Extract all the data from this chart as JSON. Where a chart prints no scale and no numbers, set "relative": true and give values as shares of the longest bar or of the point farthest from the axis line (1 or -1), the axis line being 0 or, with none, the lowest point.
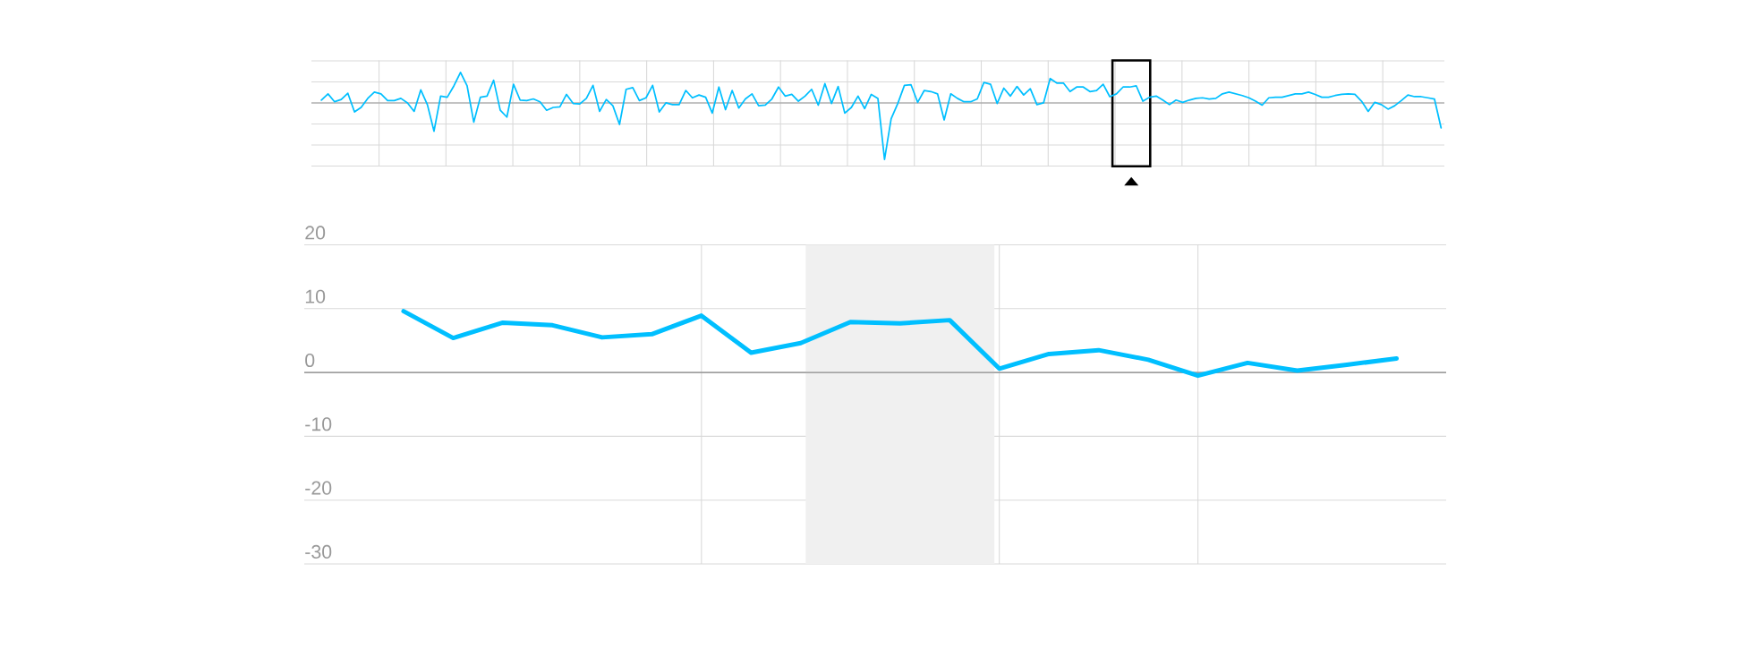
{
  "chart_data": [
    {
      "type": "line",
      "relative": true,
      "color": "#00bfff",
      "grid": true,
      "tick_labels": false,
      "categories": [
        null,
        null,
        null,
        null,
        null,
        null,
        null,
        null,
        null,
        null,
        null,
        null,
        null,
        null,
        null,
        null,
        null,
        null,
        null,
        null,
        null,
        null,
        null,
        null,
        null,
        null,
        null,
        null,
        null,
        null,
        null,
        null,
        null,
        null,
        null,
        null,
        null,
        null,
        null,
        null,
        null,
        null,
        null,
        null,
        null,
        null,
        null,
        null,
        null,
        null,
        null,
        null,
        null,
        null,
        null,
        null,
        null,
        null,
        null,
        null,
        null,
        null,
        null,
        null,
        null,
        null,
        null,
        null,
        null,
        null,
        null,
        null,
        null,
        null,
        null,
        null,
        null,
        null,
        null,
        null,
        null,
        null,
        null,
        null,
        null,
        null,
        null,
        null,
        null,
        null,
        null,
        null,
        null,
        null,
        null,
        null,
        null,
        null,
        null,
        null,
        null,
        null,
        null,
        null,
        null,
        null,
        null,
        null,
        null,
        null,
        null,
        null,
        null,
        null,
        null,
        null,
        null,
        null,
        null,
        null,
        null,
        null,
        null,
        null,
        null,
        null,
        null,
        null,
        null,
        null,
        null,
        null,
        null,
        null,
        null,
        null,
        null,
        null,
        null,
        null,
        null,
        null,
        null,
        null,
        null,
        null,
        null,
        null,
        null,
        null,
        null,
        null,
        null,
        null,
        null,
        null,
        null,
        null,
        null,
        null,
        null,
        null,
        null,
        null,
        null,
        null,
        null,
        null,
        null,
        null
      ],
      "values": [
        0.05,
        0.16,
        0.02,
        0.06,
        0.17,
        -0.16,
        -0.08,
        0.08,
        0.19,
        0.16,
        0.04,
        0.04,
        0.08,
        0,
        -0.15,
        0.23,
        -0.03,
        -0.5,
        0.12,
        0.1,
        0.3,
        0.54,
        0.3,
        -0.34,
        0.1,
        0.12,
        0.4,
        -0.13,
        -0.25,
        0.33,
        0.05,
        0.04,
        0.07,
        0.02,
        -0.13,
        -0.08,
        -0.07,
        0.15,
        -0.01,
        -0.02,
        0.08,
        0.31,
        -0.15,
        0.06,
        -0.05,
        -0.38,
        0.24,
        0.27,
        0.04,
        0.09,
        0.31,
        -0.16,
        0,
        -0.03,
        -0.03,
        0.22,
        0.09,
        0.14,
        0.1,
        -0.18,
        0.28,
        -0.12,
        0.22,
        -0.09,
        0.07,
        0.16,
        -0.05,
        -0.04,
        0.07,
        0.28,
        0.12,
        0.15,
        0.03,
        0.12,
        0.24,
        -0.04,
        0.34,
        -0.01,
        0.29,
        -0.18,
        -0.08,
        0.12,
        -0.1,
        0.15,
        0.08,
        -1,
        -0.28,
        -0.01,
        0.31,
        0.32,
        0.01,
        0.22,
        0.2,
        0.16,
        -0.3,
        0.16,
        0.08,
        0.02,
        0.02,
        0.07,
        0.36,
        0.33,
        -0.01,
        0.26,
        0.12,
        0.29,
        0.14,
        0.25,
        -0.03,
        0,
        0.43,
        0.35,
        0.35,
        0.2,
        0.28,
        0.28,
        0.2,
        0.22,
        0.33,
        0.11,
        0.16,
        0.28,
        0.28,
        0.3,
        0.03,
        0.1,
        0.12,
        0.05,
        -0.03,
        0.05,
        0.01,
        0.05,
        0.08,
        0.09,
        0.07,
        0.08,
        0.16,
        0.19,
        0.16,
        0.13,
        0.09,
        0.03,
        -0.04,
        0.09,
        0.1,
        0.1,
        0.13,
        0.16,
        0.16,
        0.19,
        0.15,
        0.1,
        0.1,
        0.13,
        0.15,
        0.16,
        0.15,
        0.03,
        -0.15,
        0.01,
        -0.03,
        -0.11,
        -0.05,
        0.04,
        0.14,
        0.11,
        0.11,
        0.09,
        0.07,
        -0.44
      ]
    },
    {
      "type": "line",
      "color": "#00bfff",
      "grid": true,
      "tick_labels": "y",
      "categories": [
        null,
        null,
        null,
        null,
        null,
        null,
        null,
        null,
        null,
        null,
        null,
        null,
        null,
        null,
        null,
        null,
        null,
        null,
        null,
        null,
        null
      ],
      "values": [
        9.6,
        5.4,
        7.8,
        7.4,
        5.5,
        6.0,
        8.9,
        3.1,
        4.6,
        7.9,
        7.7,
        8.2,
        0.6,
        2.9,
        3.5,
        2.0,
        -0.5,
        1.5,
        0.3,
        1.2,
        2.2
      ],
      "ylim": [
        -30,
        20
      ],
      "yticks": [
        20,
        10,
        0,
        -10,
        -20,
        -30
      ],
      "ref_lines": [
        {
          "axis": "y",
          "value": 0,
          "color": "#888888"
        }
      ]
    }
  ]
}
